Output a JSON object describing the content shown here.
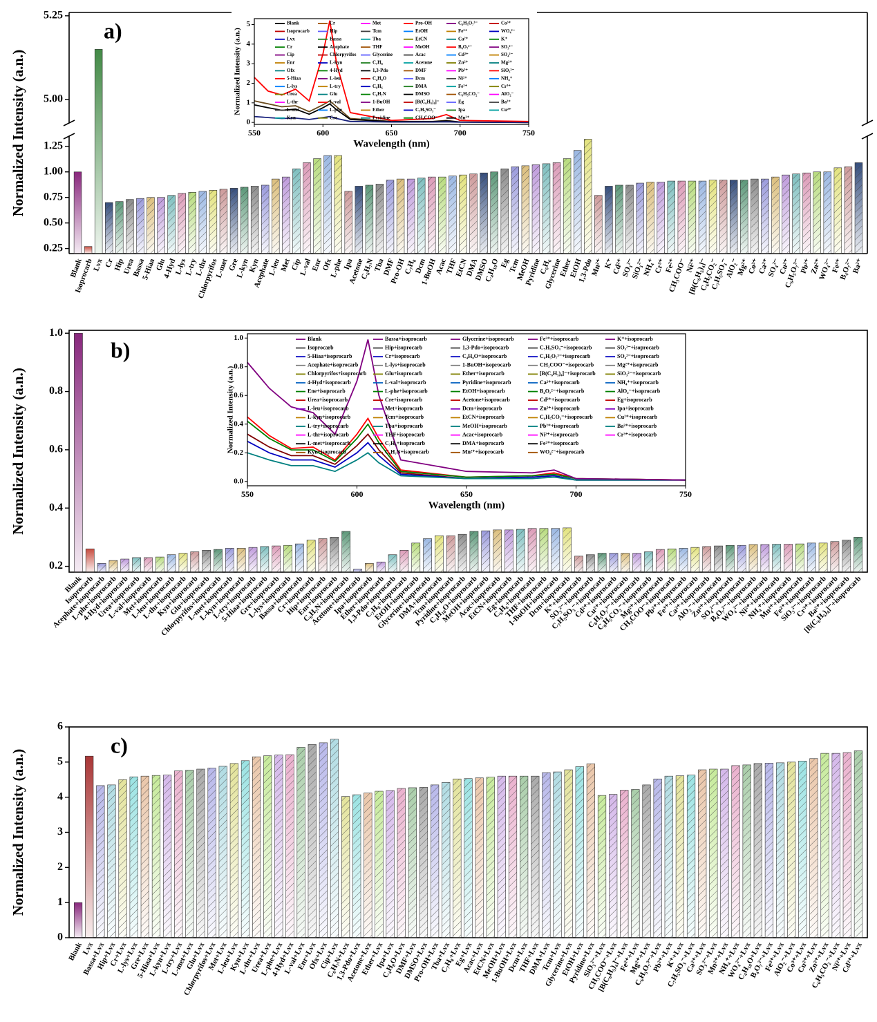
{
  "chart_data": [
    {
      "type": "bar",
      "label": "a)",
      "ylabel": "Normalized Intensity (a.n.)",
      "ylim": [
        0.2,
        5.26
      ],
      "ybreak": [
        1.35,
        4.93
      ],
      "yticks": [
        0.25,
        {
          "value": 0.5,
          "label": "0.50"
        },
        0.75,
        {
          "value": 1,
          "label": "1.00"
        },
        1.25,
        {
          "value": 5,
          "label": "5.00"
        },
        5.25
      ],
      "lead_colors": [
        "#7b0f6e",
        "#c0392b",
        "#2e7d32"
      ],
      "colors": [
        "#1f3a6e",
        "#4a8c6a",
        "#7f7f7f",
        "#8f8fd8",
        "#d8b870",
        "#b890d8",
        "#70b8b8",
        "#d890b0",
        "#b0d870",
        "#90b0e0",
        "#e0e070",
        "#c89090"
      ],
      "categories": [
        "Blank",
        "Isoprocarb",
        "Lvx",
        "Cr",
        "Hip",
        "Urea",
        "Bassa",
        "5-Hiaa",
        "Glu",
        "4-Hyd",
        "L-lys",
        "L-try",
        "L-thr",
        "Chlorpyrifos",
        "L-met",
        "Gre",
        "L-kyn",
        "Kyn",
        "Acephate",
        "L-leu",
        "Met",
        "Cip",
        "L-val",
        "Enr",
        "Ofx",
        "L-phe",
        "Ipa",
        "Acetone",
        "C₆H₇N",
        "Tba",
        "DMF",
        "Pro-OH",
        "C₇H₈",
        "Dcm",
        "1-BuOH",
        "Acac",
        "THF",
        "EtCN",
        "DMA",
        "DMSO",
        "C₄H₁₀O",
        "Eg",
        "Tcm",
        "MeOH",
        "Pyridine",
        "C₆H₆",
        "Glycerine",
        "Ether",
        "EtOH",
        "1,3-Pdo",
        "Mn²⁺",
        "K⁺",
        "Cd²⁺",
        "SO₃²⁻",
        "SiO₃²⁻",
        "NH₄⁺",
        "Cr³⁺",
        "Fe²⁺",
        "CH₃COO⁻",
        "Ni²⁺",
        "[B(C₆H₅)₄]⁻",
        "C₆H₅CO₂⁻",
        "C₇H₅SO₃⁻",
        "AlO₂⁻",
        "Mg²⁺",
        "Co³⁺",
        "Ca²⁺",
        "SO₄²⁻",
        "Cu²⁺",
        "C₆H₅O₇³⁻",
        "Pb²⁺",
        "Zn²⁺",
        "WO₄²⁻",
        "Fe³⁺",
        "B₄O₇²⁻",
        "Ba²⁺"
      ],
      "values": [
        1.0,
        0.27,
        5.15,
        0.7,
        0.71,
        0.73,
        0.74,
        0.75,
        0.75,
        0.77,
        0.79,
        0.8,
        0.81,
        0.82,
        0.83,
        0.84,
        0.85,
        0.86,
        0.87,
        0.93,
        0.95,
        1.03,
        1.09,
        1.13,
        1.16,
        1.16,
        0.81,
        0.86,
        0.87,
        0.88,
        0.92,
        0.93,
        0.93,
        0.94,
        0.95,
        0.95,
        0.96,
        0.97,
        0.98,
        0.99,
        1.0,
        1.03,
        1.05,
        1.06,
        1.07,
        1.08,
        1.09,
        1.13,
        1.21,
        1.32,
        0.77,
        0.86,
        0.87,
        0.87,
        0.89,
        0.9,
        0.9,
        0.91,
        0.91,
        0.91,
        0.91,
        0.92,
        0.92,
        0.92,
        0.92,
        0.93,
        0.93,
        0.95,
        0.97,
        0.98,
        0.99,
        1.0,
        1.0,
        1.04,
        1.05,
        1.09
      ]
    },
    {
      "type": "line",
      "xlabel": "Wavelength (nm)",
      "ylabel": "Normalized Intensity (a.n.)",
      "xlim": [
        550,
        750
      ],
      "ylim": [
        -0.1,
        5.3
      ],
      "xticks": [
        550,
        600,
        650,
        700,
        750
      ],
      "yticks": [
        0,
        1,
        2,
        3,
        4,
        5
      ],
      "x": [
        550,
        560,
        570,
        580,
        590,
        600,
        605,
        610,
        620,
        650,
        680,
        690,
        700,
        750
      ],
      "series": [
        {
          "color": "#6b4c1e",
          "values": [
            1.1,
            0.95,
            0.8,
            0.85,
            0.55,
            0.9,
            1.1,
            0.8,
            0.2,
            0.05,
            0.05,
            0.1,
            0.02,
            0.0
          ]
        },
        {
          "color": "#000000",
          "values": [
            0.9,
            0.75,
            0.62,
            0.68,
            0.42,
            0.75,
            0.95,
            0.65,
            0.15,
            0.04,
            0.04,
            0.08,
            0.02,
            0.0
          ]
        },
        {
          "color": "#1a237e",
          "values": [
            0.3,
            0.25,
            0.2,
            0.22,
            0.15,
            0.25,
            0.3,
            0.2,
            0.05,
            0.02,
            0.02,
            0.03,
            0.01,
            0.0
          ]
        },
        {
          "color": "#ff0000",
          "values": [
            2.3,
            1.6,
            1.4,
            1.7,
            1.1,
            3.5,
            5.2,
            3.0,
            0.5,
            0.1,
            0.2,
            0.4,
            0.1,
            0.05
          ]
        }
      ],
      "legend_colors": [
        "#000000",
        "#c00000",
        "#0000c0",
        "#008000",
        "#800080",
        "#c08000",
        "#008080",
        "#ff0000",
        "#0080ff",
        "#808000",
        "#ff00ff",
        "#404040",
        "#00a0a0",
        "#a05000",
        "#6060ff",
        "#208020"
      ],
      "legend": [
        "Blank",
        "Isoprocarb",
        "Lvx",
        "Cr",
        "Cip",
        "Enr",
        "Ofx",
        "5-Hiaa",
        "L-lys",
        "Urea",
        "L-thr",
        "L-met",
        "Kyn",
        "Cr",
        "Hip",
        "Bassa",
        "Acephate",
        "Chlorpyrifos",
        "L-kyn",
        "4-Hyd",
        "L-leu",
        "L-try",
        "Glu",
        "L-val",
        "L-phe",
        "Cre",
        "Met",
        "Tcm",
        "Tba",
        "THF",
        "Glycerine",
        "C₇H₈",
        "1,3-Pdo",
        "C₄H₈O",
        "C₆H₆",
        "C₆H₇N",
        "1-BuOH",
        "Ether",
        "Pyridine",
        "Pro-OH",
        "EtOH",
        "EtCN",
        "MeOH",
        "Acac",
        "Acetone",
        "DMF",
        "Dcm",
        "DMA",
        "DMSO",
        "[B(C₆H₅)₄]⁻",
        "C₇H₅SO₃⁻",
        "CH₃COO⁻",
        "C₆H₅O₇³⁻",
        "Fe³⁺",
        "Ca²⁺",
        "B₄O₇²⁻",
        "Cd²⁺",
        "Zn²⁺",
        "Pb²⁺",
        "Ni²⁺",
        "Fe²⁺",
        "C₆H₅CO₂⁻",
        "Eg",
        "Ipa",
        "Mn²⁺",
        "Co³⁺",
        "WO₄²⁻",
        "K⁺",
        "SO₃²⁻",
        "SO₄²⁻",
        "Mg²⁺",
        "SiO₃²⁻",
        "NH₄⁺",
        "Cr³⁺",
        "AlO₂⁻",
        "Ba²⁺",
        "Cu²⁺"
      ]
    },
    {
      "type": "bar",
      "label": "b)",
      "ylabel": "Normalized Intensity (a.n.)",
      "ylim": [
        0.18,
        1.01
      ],
      "yticks": [
        0.2,
        0.4,
        0.6,
        0.8,
        {
          "value": 1,
          "label": "1.0"
        }
      ],
      "lead_colors": [
        "#7b0f6e",
        "#c0392b"
      ],
      "colors": [
        "#8f8fd8",
        "#d8b870",
        "#b890d8",
        "#70b8b8",
        "#d890b0",
        "#b0d870",
        "#90b0e0",
        "#e0e070",
        "#c89090",
        "#7f7f7f",
        "#4a8c6a"
      ],
      "categories": [
        "Blank",
        "Isoprocarb",
        "Acephate+isoprocarb",
        "L-phe+isoprocarb",
        "4-Hyd+isoprocarb",
        "Urea+isoprocarb",
        "L-val+isoprocarb",
        "Met+isoprocarb",
        "L-leu+isoprocarb",
        "L-thr+isoprocarb",
        "Kyn+isoprocarb",
        "Glu+isoprocarb",
        "Chlorpyrifos+isoprocarb",
        "L-met+isoprocarb",
        "L-kyn+isoprocarb",
        "L-try+isoprocarb",
        "5-Hiaa+isoprocarb",
        "Gre+isoprocarb",
        "L-lys+isoprocarb",
        "Bassa+isoprocarb",
        "Cr+isoprocarb",
        "Hip+isoprocarb",
        "Enr+isoprocarb",
        "C₆H₇N+isoprocarb",
        "Acetone+isoprocarb",
        "Ipa+isoprocarb",
        "Ether+isoprocarb",
        "1,3-Pdo+isoprocarb",
        "C₇H₈+isoprocarb",
        "EtOH+isoprocarb",
        "Glycerine+isoprocarb",
        "DMA+isoprocarb",
        "Tcm+isoprocarb",
        "Pyridine+isoprocarb",
        "C₄H₁₀O+isoprocarb",
        "MeOH+isoprocarb",
        "Acac+isoprocarb",
        "EtCN+isoprocarb",
        "Eg+isoprocarb",
        "C₆H₆+isoprocarb",
        "THF+isoprocarb",
        "1-BuOH+isoprocarb",
        "Dcm+isoprocarb",
        "K⁺+isoprocarb",
        "SO₃²⁻+isoprocarb",
        "C₇H₅SO₃⁻+isoprocarb",
        "Cd²⁺+isoprocarb",
        "Cu²⁺+isoprocarb",
        "C₆H₅O₇³⁻+isoprocarb",
        "C₆H₅CO₂⁻+isoprocarb",
        "Mg²⁺+isoprocarb",
        "CH₃COO⁻+isoprocarb",
        "Pb²⁺+isoprocarb",
        "Fe³⁺+isoprocarb",
        "Ca²⁺+isoprocarb",
        "AlO₂⁻+isoprocarb",
        "Zn²⁺+isoprocarb",
        "SO₄²⁻+isoprocarb",
        "B₄O₇²⁻+isoprocarb",
        "WO₄²⁻+isoprocarb",
        "Ni²⁺+isoprocarb",
        "NH₄⁺+isoprocarb",
        "Mn²⁺+isoprocarb",
        "Fe²⁺+isoprocarb",
        "SiO₃²⁻+isoprocarb",
        "Cr³⁺+isoprocarb",
        "Ba²⁺+isoprocarb",
        "[B(C₆H₅)₄]⁻+isoprocarb"
      ],
      "values": [
        1.0,
        0.26,
        0.21,
        0.22,
        0.225,
        0.23,
        0.23,
        0.232,
        0.24,
        0.245,
        0.25,
        0.255,
        0.258,
        0.262,
        0.262,
        0.265,
        0.268,
        0.27,
        0.272,
        0.277,
        0.29,
        0.295,
        0.3,
        0.32,
        0.19,
        0.21,
        0.215,
        0.24,
        0.255,
        0.28,
        0.295,
        0.305,
        0.305,
        0.31,
        0.32,
        0.322,
        0.325,
        0.325,
        0.327,
        0.33,
        0.33,
        0.33,
        0.332,
        0.235,
        0.24,
        0.245,
        0.245,
        0.245,
        0.245,
        0.25,
        0.258,
        0.26,
        0.262,
        0.265,
        0.268,
        0.27,
        0.272,
        0.272,
        0.275,
        0.275,
        0.276,
        0.276,
        0.277,
        0.28,
        0.28,
        0.285,
        0.29,
        0.3
      ]
    },
    {
      "type": "line",
      "xlabel": "Wavelength (nm)",
      "ylabel": "Normalized Intensity (a.n.)",
      "xlim": [
        550,
        750
      ],
      "ylim": [
        -0.03,
        1.03
      ],
      "xticks": [
        550,
        600,
        650,
        700,
        750
      ],
      "yticks": [
        {
          "value": 0,
          "label": "0.0"
        },
        0.2,
        0.4,
        0.6,
        0.8,
        {
          "value": 1,
          "label": "1.0"
        }
      ],
      "x": [
        550,
        560,
        570,
        580,
        590,
        600,
        605,
        610,
        620,
        650,
        680,
        690,
        700,
        750
      ],
      "series": [
        {
          "color": "#ff0000",
          "values": [
            0.45,
            0.32,
            0.23,
            0.24,
            0.15,
            0.33,
            0.44,
            0.3,
            0.08,
            0.03,
            0.04,
            0.06,
            0.02,
            0.01
          ]
        },
        {
          "color": "#008000",
          "values": [
            0.42,
            0.3,
            0.22,
            0.22,
            0.14,
            0.3,
            0.4,
            0.27,
            0.07,
            0.03,
            0.04,
            0.05,
            0.02,
            0.01
          ]
        },
        {
          "color": "#800000",
          "values": [
            0.33,
            0.24,
            0.18,
            0.18,
            0.12,
            0.25,
            0.33,
            0.22,
            0.06,
            0.02,
            0.03,
            0.04,
            0.01,
            0.01
          ]
        },
        {
          "color": "#0000c0",
          "values": [
            0.28,
            0.2,
            0.15,
            0.15,
            0.1,
            0.2,
            0.27,
            0.18,
            0.05,
            0.02,
            0.03,
            0.04,
            0.01,
            0.01
          ]
        },
        {
          "color": "#008080",
          "values": [
            0.2,
            0.15,
            0.11,
            0.11,
            0.07,
            0.15,
            0.2,
            0.13,
            0.04,
            0.02,
            0.02,
            0.03,
            0.01,
            0.01
          ]
        },
        {
          "color": "#800080",
          "values": [
            0.83,
            0.65,
            0.52,
            0.48,
            0.33,
            0.7,
            0.99,
            0.6,
            0.15,
            0.07,
            0.06,
            0.08,
            0.02,
            0.01
          ]
        }
      ],
      "legend_colors": [
        "#800080",
        "#404040",
        "#0000c0",
        "#808080",
        "#808000",
        "#0060c0",
        "#008000",
        "#c00000",
        "#8000c0",
        "#c08000",
        "#008080",
        "#ff00ff",
        "#000000",
        "#a05000"
      ],
      "legend": [
        "Blank",
        "Isoprocarb",
        "5-Hiaa+isoprocarb",
        "Acephate+isoprocarb",
        "Chlorpyrifos+isoprocarb",
        "4-Hyd+isoprocarb",
        "Ene+isoprocarb",
        "Urea+isoprocarb",
        "L-leu+isoprocarb",
        "L-kyn+isoprocarb",
        "L-try+isoprocarb",
        "L-thr+isoprocarb",
        "L-met+isoprocarb",
        "Kyn+isoprocarb",
        "Bassa+isoprocarb",
        "Hip+isoprocarb",
        "Cr+isoprocarb",
        "L-lys+isoprocarb",
        "Glu+isoprocarb",
        "L-val+isoprocarb",
        "L-phe+isoprocarb",
        "Cre+isoprocarb",
        "Met+isoprocarb",
        "Tcm+isoprocarb",
        "Tba+isoprocarb",
        "THF+isoprocarb",
        "C₇H₈+isoprocarb",
        "C₆H₇N+isoprocarb",
        "Glycerine+isoprocarb",
        "1,3-Pdo+isoprocarb",
        "C₄H₈O+isoprocarb",
        "1-BuOH+isoprocarb",
        "Ether+isoprocarb",
        "Pyridine+isoprocarb",
        "EtOH+isoprocarb",
        "Acetone+isoprocarb",
        "Dcm+isoprocarb",
        "EtCN+isoprocarb",
        "MeOH+isoprocarb",
        "Acac+isoprocarb",
        "DMA+isoprocarb",
        "Mn²⁺+isoprocarb",
        "Fe³⁺+isoprocarb",
        "C₇H₅SO₃⁻+isoprocarb",
        "C₆H₅O₇³⁻+isoprocarb",
        "CH₃COO⁻+isoprocarb",
        "[B(C₆H₅)₄]⁻+isoprocarb",
        "Ca²⁺+isoprocarb",
        "B₄O₇²⁻+isoprocarb",
        "Cd²⁺+isoprocarb",
        "Zn²⁺+isoprocarb",
        "C₆H₅CO₂⁻+isoprocarb",
        "Pb²⁺+isoprocarb",
        "Ni²⁺+isoprocarb",
        "Fe²⁺+isoprocarb",
        "WO₄²⁻+isoprocarb",
        "K⁺+isoprocarb",
        "SO₃²⁻+isoprocarb",
        "SO₄²⁻+isoprocarb",
        "Mg²⁺+isoprocarb",
        "SiO₃²⁻+isoprocarb",
        "NH₄⁺+isoprocarb",
        "AlO₂⁻+isoprocarb",
        "Eg+isoprocarb",
        "Ipa+isoprocarb",
        "Cu²⁺+isoprocarb",
        "Ba²⁺+isoprocarb",
        "Cr³⁺+isoprocarb"
      ]
    },
    {
      "type": "bar",
      "label": "c)",
      "ylabel": "Normalized Intensity (a.n.)",
      "ylim": [
        0,
        6
      ],
      "yticks": [
        0,
        1,
        2,
        3,
        4,
        5,
        6
      ],
      "lead_colors": [
        "#7b0f6e",
        "#a02020"
      ],
      "colors": [
        "#b0b0e8",
        "#a8d8e0",
        "#e0e090",
        "#90e0e0",
        "#e8c0a0",
        "#c0e890",
        "#d0b0e8",
        "#e8a8c8",
        "#a0c8a0",
        "#a0a0a0"
      ],
      "categories": [
        "Blank",
        "Lvx",
        "Bassa+Lvx",
        "Hip+Lvx",
        "Cr+Lvx",
        "L-lys+Lvx",
        "Gre+Lvx",
        "5-Hiaa+Lvx",
        "L-kyn+Lvx",
        "L-try+Lvx",
        "L-met+Lvx",
        "Glu+Lvx",
        "Chlorpyrifos+Lvx",
        "Met+Lvx",
        "L-leu+Lvx",
        "Kyn+Lvx",
        "L-thr+Lvx",
        "Urea+Lvx",
        "L-phe+Lvx",
        "4-Hyd+Lvx",
        "L-val+Lvx",
        "Enr+Lvx",
        "Ofx+Lvx",
        "Cip+Lvx",
        "C₆H₇N+Lvx",
        "1,3-Pdo+Lvx",
        "Acetone+Lvx",
        "Ether+Lvx",
        "Ipa+Lvx",
        "C₄H₈O+Lvx",
        "DMF+Lvx",
        "DMSO+Lvx",
        "Pro-OH+Lvx",
        "Tba+Lvx",
        "C₇H₈+Lvx",
        "Eg+Lvx",
        "Acac+Lvx",
        "EtCN+Lvx",
        "MeOH+Lvx",
        "1-BuOH+Lvx",
        "Dcm+Lvx",
        "THF+Lvx",
        "DMA+Lvx",
        "Tcm+Lvx",
        "Glycerine+Lvx",
        "EtOH+Lvx",
        "Pyridine+Lvx",
        "SiO₃²⁻+Lvx",
        "CH₃COO⁻+Lvx",
        "[B(C₆H₅)₄]⁻+Lvx",
        "Fe²⁺+Lvx",
        "Mg²⁺+Lvx",
        "C₆H₅O₇³⁻+Lvx",
        "Pb²⁺+Lvx",
        "K⁺+Lvx",
        "C₇H₅SO₃⁻+Lvx",
        "Ca²⁺+Lvx",
        "SO₃²⁻+Lvx",
        "Mn²⁺+Lvx",
        "NH₄⁺+Lvx",
        "WO₄²⁻+Lvx",
        "C₄H₁₀O+Lvx",
        "B₄O₇²⁻+Lvx",
        "Fe³⁺+Lvx",
        "AlO₂⁻+Lvx",
        "Co³⁺+Lvx",
        "Cu²⁺+Lvx",
        "Zn²⁺+Lvx",
        "C₆H₅CO₂⁻+Lvx",
        "Ni²⁺+Lvx",
        "Cd²⁺+Lvx"
      ],
      "values": [
        1.0,
        5.17,
        4.33,
        4.35,
        4.5,
        4.58,
        4.6,
        4.62,
        4.63,
        4.75,
        4.77,
        4.8,
        4.83,
        4.88,
        4.96,
        5.04,
        5.15,
        5.18,
        5.2,
        5.21,
        5.42,
        5.5,
        5.55,
        5.65,
        4.02,
        4.07,
        4.12,
        4.17,
        4.19,
        4.25,
        4.27,
        4.28,
        4.35,
        4.42,
        4.52,
        4.53,
        4.55,
        4.57,
        4.6,
        4.6,
        4.6,
        4.6,
        4.7,
        4.72,
        4.78,
        4.87,
        4.95,
        4.05,
        4.08,
        4.2,
        4.22,
        4.35,
        4.52,
        4.6,
        4.61,
        4.63,
        4.78,
        4.8,
        4.8,
        4.9,
        4.92,
        4.96,
        4.97,
        4.98,
        5.0,
        5.03,
        5.1,
        5.25,
        5.25,
        5.27,
        5.32
      ]
    }
  ]
}
